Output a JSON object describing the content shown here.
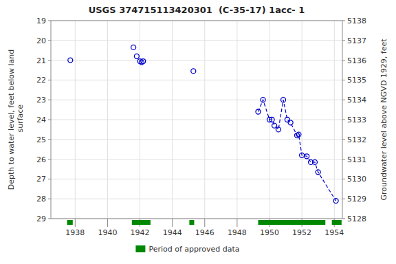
{
  "chart_data": {
    "type": "scatter",
    "title": "USGS 374715113420301  (C-35-17) 1acc- 1",
    "ylabel": "Depth to water level, feet below land\n surface",
    "y2label": "Groundwater level above NGVD 1929, feet",
    "xlim": [
      1936.5,
      1954.5
    ],
    "xticks": [
      1938,
      1940,
      1942,
      1944,
      1946,
      1948,
      1950,
      1952,
      1954
    ],
    "ylim": [
      29,
      19
    ],
    "yticks": [
      19,
      20,
      21,
      22,
      23,
      24,
      25,
      26,
      27,
      28,
      29
    ],
    "y2lim": [
      5128,
      5138
    ],
    "y2ticks": [
      5128,
      5129,
      5130,
      5131,
      5132,
      5133,
      5134,
      5135,
      5136,
      5137,
      5138
    ],
    "grid": true,
    "legend": "bottom",
    "series": [
      {
        "type": "scatter",
        "marker": "circle",
        "color": "#0000cc",
        "x": [
          1937.7,
          1941.6,
          1941.8,
          1942.0,
          1942.1,
          1942.2,
          1945.3
        ],
        "values": [
          21.0,
          20.35,
          20.8,
          21.05,
          21.1,
          21.05,
          21.55
        ]
      },
      {
        "type": "line",
        "marker": "circle",
        "line_style": "dashed",
        "color": "#0000cc",
        "x": [
          1949.3,
          1949.6,
          1950.0,
          1950.15,
          1950.3,
          1950.55,
          1950.85,
          1951.1,
          1951.3,
          1951.7,
          1951.8,
          1952.0,
          1952.3,
          1952.55,
          1952.8,
          1953.0,
          1954.1
        ],
        "values": [
          23.6,
          23.0,
          24.0,
          24.0,
          24.3,
          24.5,
          23.0,
          24.0,
          24.15,
          24.8,
          24.75,
          25.8,
          25.85,
          26.15,
          26.15,
          26.65,
          28.1
        ]
      },
      {
        "type": "span",
        "name": "Period of approved data",
        "color": "#008800",
        "x": [
          1937.5,
          1941.5,
          1945.05,
          1949.3,
          1953.85
        ],
        "x_end": [
          1937.85,
          1942.65,
          1945.35,
          1953.45,
          1954.45
        ]
      }
    ]
  }
}
